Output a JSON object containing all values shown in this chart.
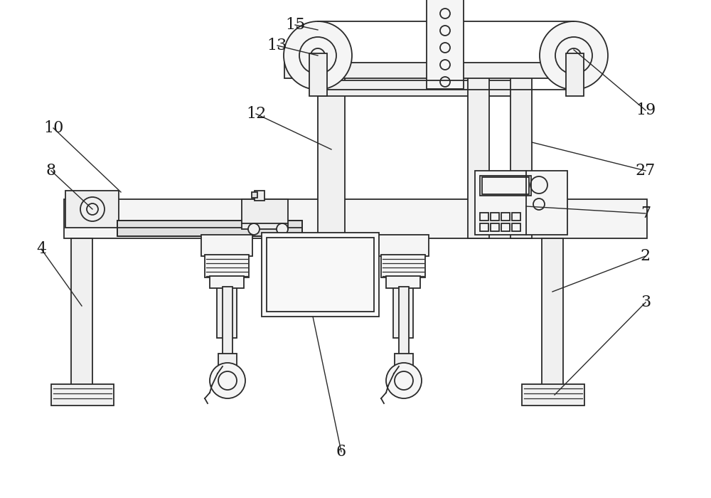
{
  "background_color": "#ffffff",
  "line_color": "#2a2a2a",
  "lw": 1.3,
  "figure_width": 10,
  "figure_height": 7
}
